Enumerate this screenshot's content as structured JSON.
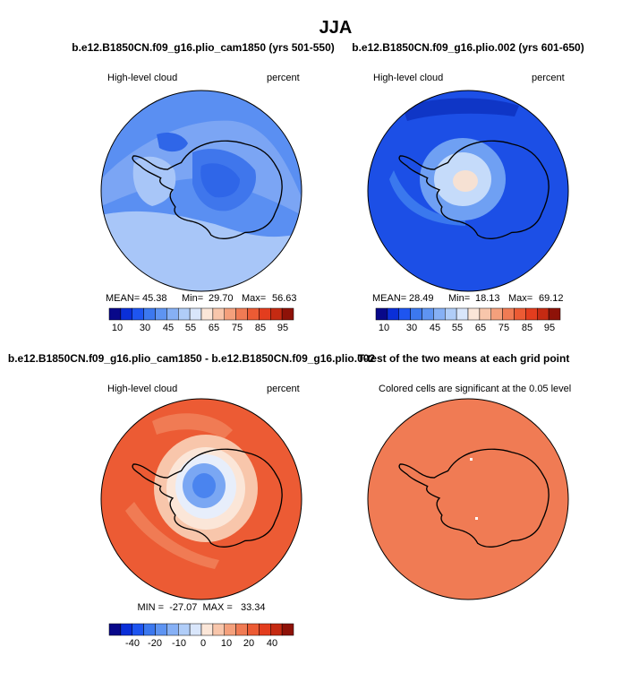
{
  "figure": {
    "title": "JJA"
  },
  "panels": [
    {
      "title": "b.e12.B1850CN.f09_g16.plio_cam1850 (yrs 501-550)",
      "left_label": "High-level cloud",
      "right_label": "percent",
      "stats": {
        "mean_label": "MEAN=",
        "mean": "45.38",
        "min_label": "Min=",
        "min": "29.70",
        "max_label": "Max=",
        "max": "56.63"
      },
      "colorbar": "abs",
      "field": "p1"
    },
    {
      "title": "b.e12.B1850CN.f09_g16.plio.002 (yrs 601-650)",
      "left_label": "High-level cloud",
      "right_label": "percent",
      "stats": {
        "mean_label": "MEAN=",
        "mean": "28.49",
        "min_label": "Min=",
        "min": "18.13",
        "max_label": "Max=",
        "max": "69.12"
      },
      "colorbar": "abs",
      "field": "p2"
    },
    {
      "title": "b.e12.B1850CN.f09_g16.plio_cam1850 - b.e12.B1850CN.f09_g16.plio.002",
      "left_label": "High-level cloud",
      "right_label": "percent",
      "minmax": "MIN =  -27.07  MAX =   33.34",
      "colorbar": "diff",
      "field": "p3"
    },
    {
      "title": "T-test of the two means at each grid point",
      "left_label": "Colored cells are significant at the 0.05 level",
      "right_label": "",
      "field": "p4"
    }
  ],
  "colorbars": {
    "abs": {
      "colors": [
        "#08088a",
        "#0a2fd8",
        "#1e55f0",
        "#3c78ef",
        "#5e94f2",
        "#86b0f5",
        "#b0cdf8",
        "#d9e6fb",
        "#fbe6d8",
        "#f8c6ab",
        "#f4a07c",
        "#f07b54",
        "#ec5b34",
        "#e33d1e",
        "#c52a12",
        "#8e1208"
      ],
      "tick_labels": [
        "10",
        "30",
        "45",
        "55",
        "65",
        "75",
        "85",
        "95"
      ]
    },
    "diff": {
      "colors": [
        "#08088a",
        "#0a2fd8",
        "#1e55f0",
        "#3c78ef",
        "#5e94f2",
        "#86b0f5",
        "#b0cdf8",
        "#d9e6fb",
        "#fbe6d8",
        "#f8c6ab",
        "#f4a07c",
        "#f07b54",
        "#ec5b34",
        "#e33d1e",
        "#c52a12",
        "#8e1208"
      ],
      "tick_labels": [
        "-40",
        "-20",
        "-10",
        "0",
        "10",
        "20",
        "40"
      ]
    }
  },
  "map_colors": {
    "p1": {
      "base": "#5a8ff2",
      "mid": "#7ba5f4",
      "light": "#a8c6f8",
      "dark": "#3f76ec",
      "deep": "#2f66e8"
    },
    "p2": {
      "base": "#1c4fe6",
      "top": "#0f36c6",
      "ring": "#6fa0f3",
      "inner": "#c5dbfa",
      "core": "#f6e1d3",
      "sea": "#3a78ee"
    },
    "p3": {
      "base": "#ec5b34",
      "mid": "#f07b54",
      "light": "#f8c6ab",
      "pale": "#fbe6d8",
      "white": "#e7eefb",
      "blue": "#7aa7f3",
      "deep": "#4a84ef"
    },
    "p4": {
      "base": "#f07b54"
    }
  }
}
